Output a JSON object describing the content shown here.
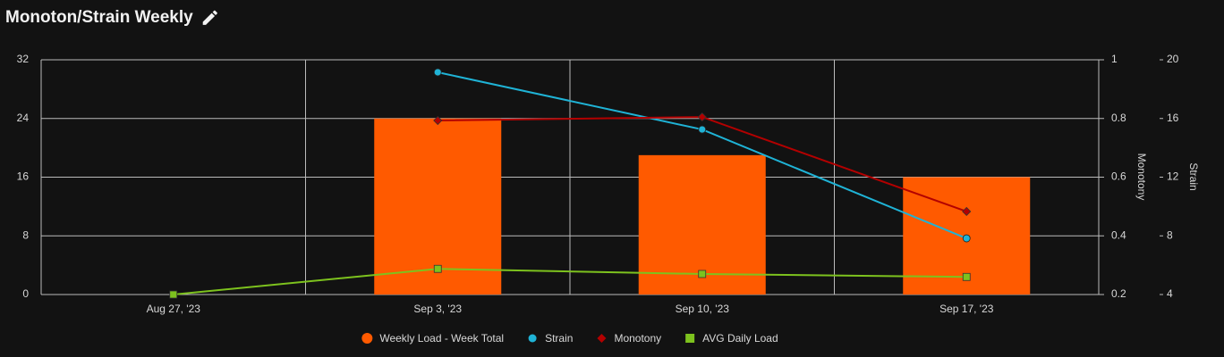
{
  "chart_data": {
    "type": "bar",
    "title": "Monoton/Strain Weekly",
    "categories": [
      "Aug 27, '23",
      "Sep 3, '23",
      "Sep 10, '23",
      "Sep 17, '23"
    ],
    "ylim": [
      0,
      32
    ],
    "yticks": [
      0,
      8,
      16,
      24,
      32
    ],
    "y2lim": [
      0.2,
      1
    ],
    "y2ticks": [
      0.2,
      0.4,
      0.6,
      0.8,
      1
    ],
    "y2label": "Monotony",
    "y3lim": [
      4,
      20
    ],
    "y3ticks": [
      4,
      8,
      12,
      16,
      20
    ],
    "y3label": "Strain",
    "grid": true,
    "legend": "bottom",
    "series": [
      {
        "name": "Weekly Load - Week Total",
        "type": "bar",
        "marker": "circle",
        "color": "#ff5a00",
        "axis": "y",
        "values": [
          0,
          24,
          19,
          16
        ]
      },
      {
        "name": "Strain",
        "type": "line",
        "marker": "circle",
        "color": "#1fb3d6",
        "axis": "y3",
        "values": [
          null,
          19.15,
          15.25,
          7.83
        ]
      },
      {
        "name": "Monotony",
        "type": "line",
        "marker": "diamond",
        "color": "#b30000",
        "axis": "y2",
        "values": [
          null,
          0.793,
          0.805,
          0.483
        ]
      },
      {
        "name": "AVG Daily Load",
        "type": "line",
        "marker": "square",
        "color": "#7dc21e",
        "axis": "y",
        "values": [
          0,
          3.5,
          2.8,
          2.4
        ]
      }
    ]
  }
}
